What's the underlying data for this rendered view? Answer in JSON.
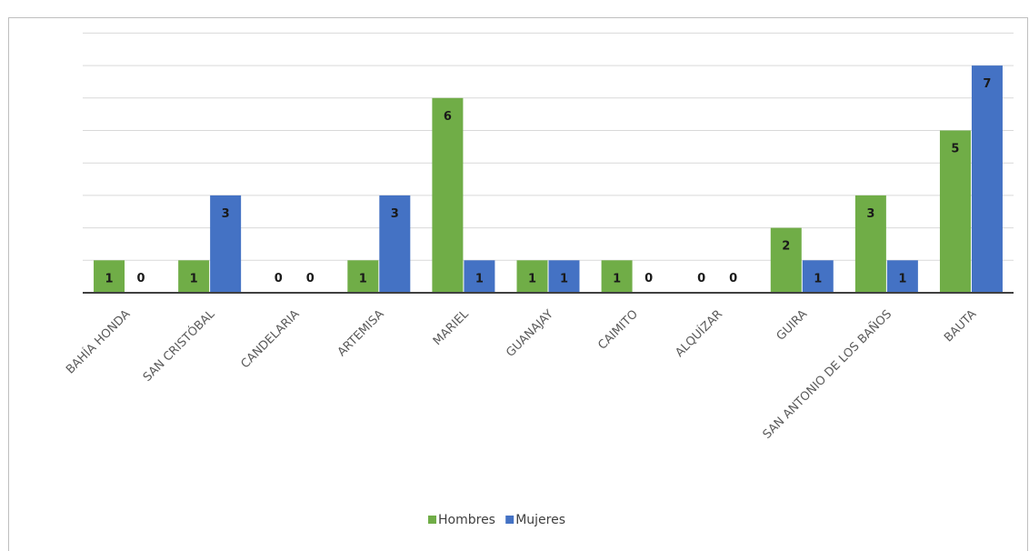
{
  "title": "",
  "chart_data": {
    "type": "bar",
    "categories": [
      "BAHÍA HONDA",
      "SAN CRISTÓBAL",
      "CANDELARIA",
      "ARTEMISA",
      "MARIEL",
      "GUANAJAY",
      "CAIMITO",
      "ALQUÍZAR",
      "GUIRA",
      "SAN ANTONIO DE LOS BAÑOS",
      "BAUTA"
    ],
    "series": [
      {
        "name": "Hombres",
        "color": "#70ad47",
        "values": [
          1,
          1,
          0,
          1,
          6,
          1,
          1,
          0,
          2,
          3,
          5
        ]
      },
      {
        "name": "Mujeres",
        "color": "#4472c4",
        "values": [
          0,
          3,
          0,
          3,
          1,
          1,
          0,
          0,
          1,
          1,
          7
        ]
      }
    ],
    "ylim": [
      0,
      8
    ],
    "grid": true,
    "legend": "bottom",
    "data_labels": true,
    "xlabel": "",
    "ylabel": ""
  }
}
